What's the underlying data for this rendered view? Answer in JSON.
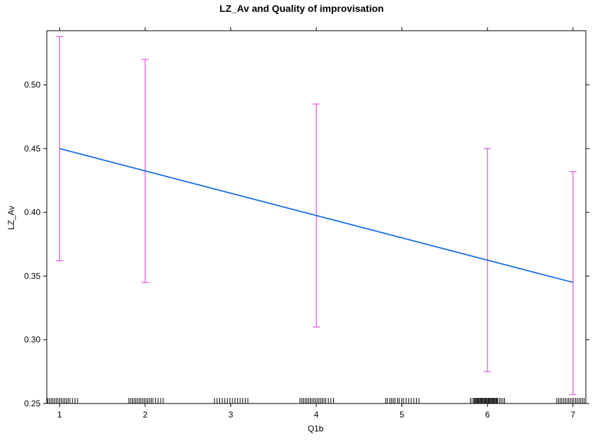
{
  "chart_data": {
    "type": "line",
    "title": "LZ_Av and Quality of improvisation",
    "xlabel": "Q1b",
    "ylabel": "LZ_Av",
    "xlim": [
      0.85,
      7.15
    ],
    "ylim": [
      0.25,
      0.5425
    ],
    "x_ticks": [
      1,
      2,
      3,
      4,
      5,
      6,
      7
    ],
    "y_ticks": [
      0.25,
      0.3,
      0.35,
      0.4,
      0.45,
      0.5
    ],
    "y_tick_labels": [
      "0.25",
      "0.30",
      "0.35",
      "0.40",
      "0.45",
      "0.50"
    ],
    "fit_line": {
      "x": [
        1,
        7
      ],
      "y": [
        0.45,
        0.345
      ],
      "color": "#1a6ee6"
    },
    "error_bars": {
      "color": "#e64fe6",
      "x": [
        1,
        2,
        4,
        6,
        7
      ],
      "lower": [
        0.362,
        0.345,
        0.31,
        0.275,
        0.257
      ],
      "upper": [
        0.538,
        0.52,
        0.485,
        0.45,
        0.432
      ]
    },
    "rug": {
      "color": "#000000",
      "x": [
        0.86,
        0.88,
        0.9,
        0.92,
        0.94,
        0.96,
        0.98,
        1.0,
        1.02,
        1.04,
        1.06,
        1.08,
        1.1,
        1.12,
        1.15,
        1.18,
        1.21,
        1.81,
        1.83,
        1.85,
        1.87,
        1.89,
        1.91,
        1.93,
        1.95,
        1.97,
        1.99,
        2.01,
        2.03,
        2.05,
        2.07,
        2.09,
        2.12,
        2.15,
        2.18,
        2.21,
        2.81,
        2.84,
        2.87,
        2.9,
        2.93,
        2.96,
        2.99,
        3.02,
        3.05,
        3.08,
        3.11,
        3.14,
        3.17,
        3.2,
        3.81,
        3.83,
        3.85,
        3.87,
        3.89,
        3.91,
        3.93,
        3.95,
        3.97,
        3.99,
        4.01,
        4.03,
        4.05,
        4.07,
        4.09,
        4.11,
        4.14,
        4.17,
        4.2,
        4.81,
        4.83,
        4.86,
        4.88,
        4.9,
        4.92,
        4.95,
        4.97,
        5.0,
        5.02,
        5.05,
        5.08,
        5.11,
        5.14,
        5.17,
        5.2,
        5.8,
        5.82,
        5.84,
        5.85,
        5.86,
        5.87,
        5.88,
        5.89,
        5.9,
        5.91,
        5.92,
        5.93,
        5.94,
        5.95,
        5.96,
        5.97,
        5.98,
        5.99,
        6.0,
        6.01,
        6.02,
        6.03,
        6.04,
        6.05,
        6.06,
        6.07,
        6.08,
        6.09,
        6.1,
        6.11,
        6.12,
        6.14,
        6.16,
        6.18,
        6.2,
        6.81,
        6.83,
        6.85,
        6.87,
        6.89,
        6.91,
        6.93,
        6.95,
        6.97,
        6.99,
        7.01,
        7.03,
        7.05,
        7.07,
        7.09,
        7.11,
        7.13
      ]
    }
  }
}
